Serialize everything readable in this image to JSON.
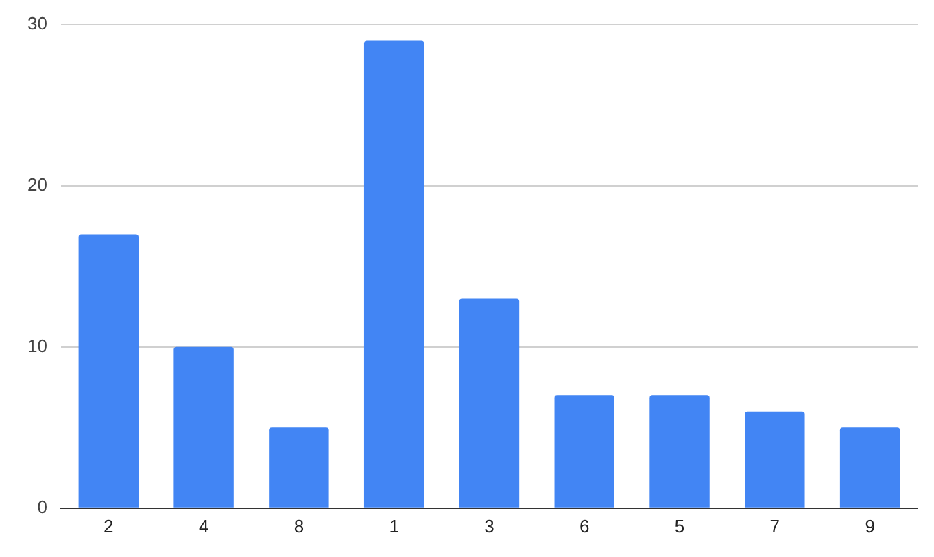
{
  "chart_data": {
    "type": "bar",
    "categories": [
      "2",
      "4",
      "8",
      "1",
      "3",
      "6",
      "5",
      "7",
      "9"
    ],
    "values": [
      17,
      10,
      5,
      29,
      13,
      7,
      7,
      6,
      5
    ],
    "color": "#4285f4",
    "ylim": [
      0,
      30
    ],
    "yticks": [
      0,
      10,
      20,
      30
    ],
    "grid": "y",
    "legend": false
  }
}
